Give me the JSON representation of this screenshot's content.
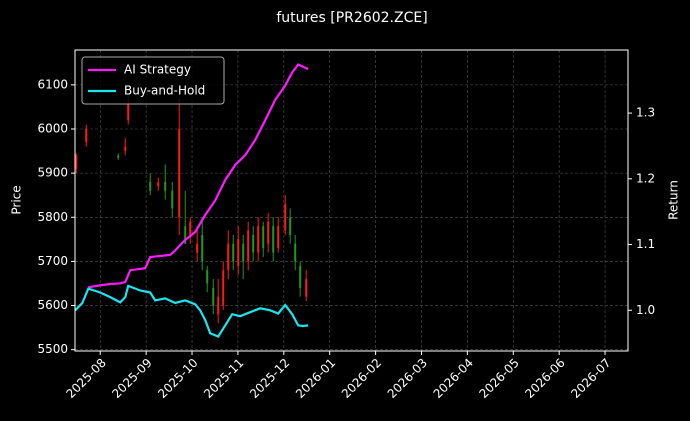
{
  "chart_data": {
    "type": "candlestick",
    "title": "futures [PR2602.ZCE]",
    "ylabel": "Price",
    "y2label": "Return",
    "xlim": [
      0.45,
      12.5
    ],
    "xticks": [
      {
        "value": 1,
        "label": "2025-08"
      },
      {
        "value": 2,
        "label": "2025-09"
      },
      {
        "value": 3,
        "label": "2025-10"
      },
      {
        "value": 4,
        "label": "2025-11"
      },
      {
        "value": 5,
        "label": "2025-12"
      },
      {
        "value": 6,
        "label": "2026-01"
      },
      {
        "value": 7,
        "label": "2026-02"
      },
      {
        "value": 8,
        "label": "2026-03"
      },
      {
        "value": 9,
        "label": "2026-04"
      },
      {
        "value": 10,
        "label": "2026-05"
      },
      {
        "value": 11,
        "label": "2026-06"
      },
      {
        "value": 12,
        "label": "2026-07"
      }
    ],
    "ylim": [
      5497,
      6179
    ],
    "yticks": [
      5500,
      5600,
      5700,
      5800,
      5900,
      6000,
      6100
    ],
    "y2lim": [
      0.938,
      1.396
    ],
    "y2ticks": [
      {
        "value": 1,
        "label": "1.0"
      },
      1.1,
      1.2,
      1.3
    ],
    "grid": true,
    "legend": "upper left",
    "candles": {
      "up_color": "#ff1a1a",
      "down_color": "#1f9a1f",
      "x": [
        0.477,
        0.695,
        1.392,
        1.545,
        1.61,
        2.089,
        2.264,
        2.416,
        2.569,
        2.721,
        2.852,
        2.961,
        3.113,
        3.222,
        3.331,
        3.462,
        3.571,
        3.68,
        3.789,
        3.898,
        4.007,
        4.115,
        4.224,
        4.333,
        4.442,
        4.551,
        4.66,
        4.769,
        4.878,
        5.031,
        5.139,
        5.248,
        5.357,
        5.488
      ],
      "open": [
        5910,
        5970,
        5940,
        5950,
        6020,
        5880,
        5870,
        5880,
        5860,
        5800,
        5780,
        5760,
        5720,
        5760,
        5680,
        5640,
        5580,
        5600,
        5680,
        5740,
        5690,
        5740,
        5700,
        5760,
        5720,
        5780,
        5740,
        5780,
        5730,
        5770,
        5800,
        5740,
        5690,
        5620
      ],
      "high": [
        5945,
        6010,
        5945,
        5980,
        6080,
        5900,
        5890,
        5920,
        5880,
        6070,
        5860,
        5800,
        5780,
        5800,
        5690,
        5660,
        5660,
        5700,
        5770,
        5760,
        5780,
        5760,
        5790,
        5780,
        5800,
        5790,
        5810,
        5800,
        5800,
        5850,
        5820,
        5760,
        5700,
        5680
      ],
      "low": [
        5900,
        5960,
        5930,
        5940,
        6010,
        5850,
        5860,
        5840,
        5800,
        5760,
        5740,
        5740,
        5700,
        5680,
        5630,
        5580,
        5560,
        5590,
        5660,
        5680,
        5670,
        5660,
        5680,
        5700,
        5700,
        5710,
        5720,
        5700,
        5720,
        5760,
        5740,
        5680,
        5620,
        5610
      ],
      "close": [
        5940,
        6000,
        5935,
        5960,
        6060,
        5860,
        5880,
        5860,
        5820,
        6000,
        5740,
        5790,
        5740,
        5700,
        5650,
        5600,
        5620,
        5680,
        5740,
        5700,
        5750,
        5700,
        5770,
        5720,
        5780,
        5730,
        5790,
        5720,
        5780,
        5830,
        5760,
        5700,
        5640,
        5660
      ]
    },
    "series": [
      {
        "name": "AI Strategy",
        "color": "#ff1aff",
        "axis": "y2",
        "x": [
          0.739,
          1,
          1.218,
          1.436,
          1.545,
          1.654,
          1.98,
          2.089,
          2.525,
          2.634,
          2.852,
          3.07,
          3.288,
          3.505,
          3.723,
          3.941,
          4.159,
          4.377,
          4.595,
          4.813,
          5.031,
          5.183,
          5.314,
          5.401,
          5.532
        ],
        "values": [
          1.035,
          1.038,
          1.04,
          1.041,
          1.043,
          1.061,
          1.064,
          1.081,
          1.084,
          1.091,
          1.107,
          1.119,
          1.145,
          1.167,
          1.198,
          1.221,
          1.236,
          1.259,
          1.289,
          1.32,
          1.342,
          1.362,
          1.374,
          1.371,
          1.367
        ]
      },
      {
        "name": "Buy-and-Hold",
        "color": "#1ae6f0",
        "axis": "y2",
        "x": [
          0.455,
          0.608,
          0.739,
          1,
          1.218,
          1.436,
          1.545,
          1.61,
          1.871,
          2.089,
          2.198,
          2.416,
          2.634,
          2.852,
          3.07,
          3.179,
          3.288,
          3.397,
          3.571,
          3.723,
          3.876,
          4.05,
          4.268,
          4.486,
          4.704,
          4.878,
          5.031,
          5.183,
          5.314,
          5.423,
          5.532
        ],
        "values": [
          1.0,
          1.011,
          1.033,
          1.027,
          1.02,
          1.012,
          1.02,
          1.037,
          1.03,
          1.027,
          1.015,
          1.018,
          1.011,
          1.015,
          1.009,
          1.0,
          0.985,
          0.965,
          0.96,
          0.977,
          0.994,
          0.991,
          0.997,
          1.003,
          1.0,
          0.995,
          1.008,
          0.994,
          0.977,
          0.976,
          0.977
        ]
      }
    ]
  }
}
